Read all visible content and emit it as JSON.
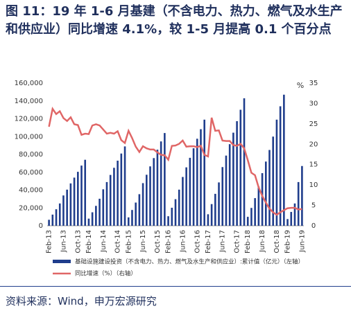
{
  "chart_data": {
    "type": "bar-line",
    "title": "图 11：19 年 1-6 月基建（不含电力、热力、燃气及水生产和供应业）同比增速 4.1%，较 1-5 月提高 0.1 个百分点",
    "source": "资料来源：Wind，申万宏源研究",
    "y2label": "%",
    "categories": [
      "Feb-13",
      null,
      null,
      null,
      "Jun-13",
      null,
      null,
      null,
      "Oct-13",
      null,
      null,
      "Feb-14",
      null,
      null,
      null,
      "Jun-14",
      null,
      null,
      null,
      "Oct-14",
      null,
      null,
      "Feb-15",
      null,
      null,
      null,
      "Jun-15",
      null,
      null,
      null,
      "Oct-15",
      null,
      null,
      "Feb-16",
      null,
      null,
      null,
      "Jun-16",
      null,
      null,
      null,
      "Oct-16",
      null,
      null,
      "Feb-17",
      null,
      null,
      null,
      "Jun-17",
      null,
      null,
      null,
      "Oct-17",
      null,
      null,
      "Feb-18",
      null,
      null,
      null,
      "Jun-18",
      null,
      null,
      null,
      "Oct-18",
      null,
      null,
      "Feb-19",
      null,
      null,
      null,
      "Jun-19"
    ],
    "series": [
      {
        "name": "基础设施建设投资（不含电力、热力、燃气及水生产和供应业）:累计值（亿元）（左轴）",
        "color": "#1f3d8c",
        "type": "bar",
        "values": [
          6700,
          12500,
          18500,
          25000,
          34000,
          40500,
          47500,
          54000,
          60500,
          67500,
          74000,
          8000,
          15100,
          22300,
          30300,
          40900,
          49000,
          57000,
          65000,
          73000,
          81000,
          89000,
          9400,
          17700,
          26000,
          35400,
          47800,
          57200,
          66600,
          75900,
          85300,
          94600,
          104000,
          10700,
          20200,
          29800,
          40500,
          54700,
          65500,
          76200,
          86900,
          97600,
          108300,
          119000,
          12900,
          24300,
          35800,
          48600,
          65800,
          78700,
          91500,
          104400,
          117300,
          130100,
          143000,
          10000,
          20000,
          31000,
          44000,
          59000,
          72000,
          85000,
          100000,
          119000,
          134000,
          147000,
          7500,
          15500,
          25000,
          49000,
          67000
        ]
      },
      {
        "name": "同比增速（%）（右轴）",
        "color": "#e06666",
        "type": "line",
        "axis": "y2",
        "values": [
          24.3,
          28.7,
          27.4,
          28.1,
          26.4,
          25.7,
          26.6,
          24.9,
          24.7,
          22.3,
          22.6,
          22.5,
          24.6,
          24.9,
          24.6,
          23.6,
          22.6,
          22.8,
          22.6,
          23.2,
          21.0,
          20.3,
          23.3,
          21.5,
          19.4,
          18.1,
          19.5,
          19.0,
          18.7,
          18.7,
          18.0,
          17.4,
          17.3,
          16.2,
          19.6,
          19.7,
          20.1,
          20.9,
          19.4,
          19.5,
          19.5,
          19.3,
          19.6,
          17.4,
          17.0,
          26.5,
          23.3,
          23.4,
          20.9,
          20.8,
          20.8,
          19.8,
          19.6,
          20.1,
          19.0,
          16.1,
          13.0,
          12.4,
          9.4,
          7.3,
          5.7,
          4.2,
          3.3,
          2.7,
          3.3,
          3.8,
          4.3,
          4.4,
          4.4,
          4.0,
          4.1
        ]
      }
    ],
    "ylim": [
      0,
      160000
    ],
    "yticks": [
      0,
      {
        "value": 20000,
        "label": "20,000"
      },
      {
        "value": 40000,
        "label": "40,000"
      },
      {
        "value": 60000,
        "label": "60,000"
      },
      {
        "value": 80000,
        "label": "80,000"
      },
      {
        "value": 100000,
        "label": "100,000"
      },
      {
        "value": 120000,
        "label": "120,000"
      },
      {
        "value": 140000,
        "label": "140,000"
      },
      {
        "value": 160000,
        "label": "160,000"
      }
    ],
    "y2lim": [
      0,
      35
    ],
    "y2ticks": [
      0,
      5,
      10,
      15,
      20,
      25,
      30,
      35
    ]
  }
}
